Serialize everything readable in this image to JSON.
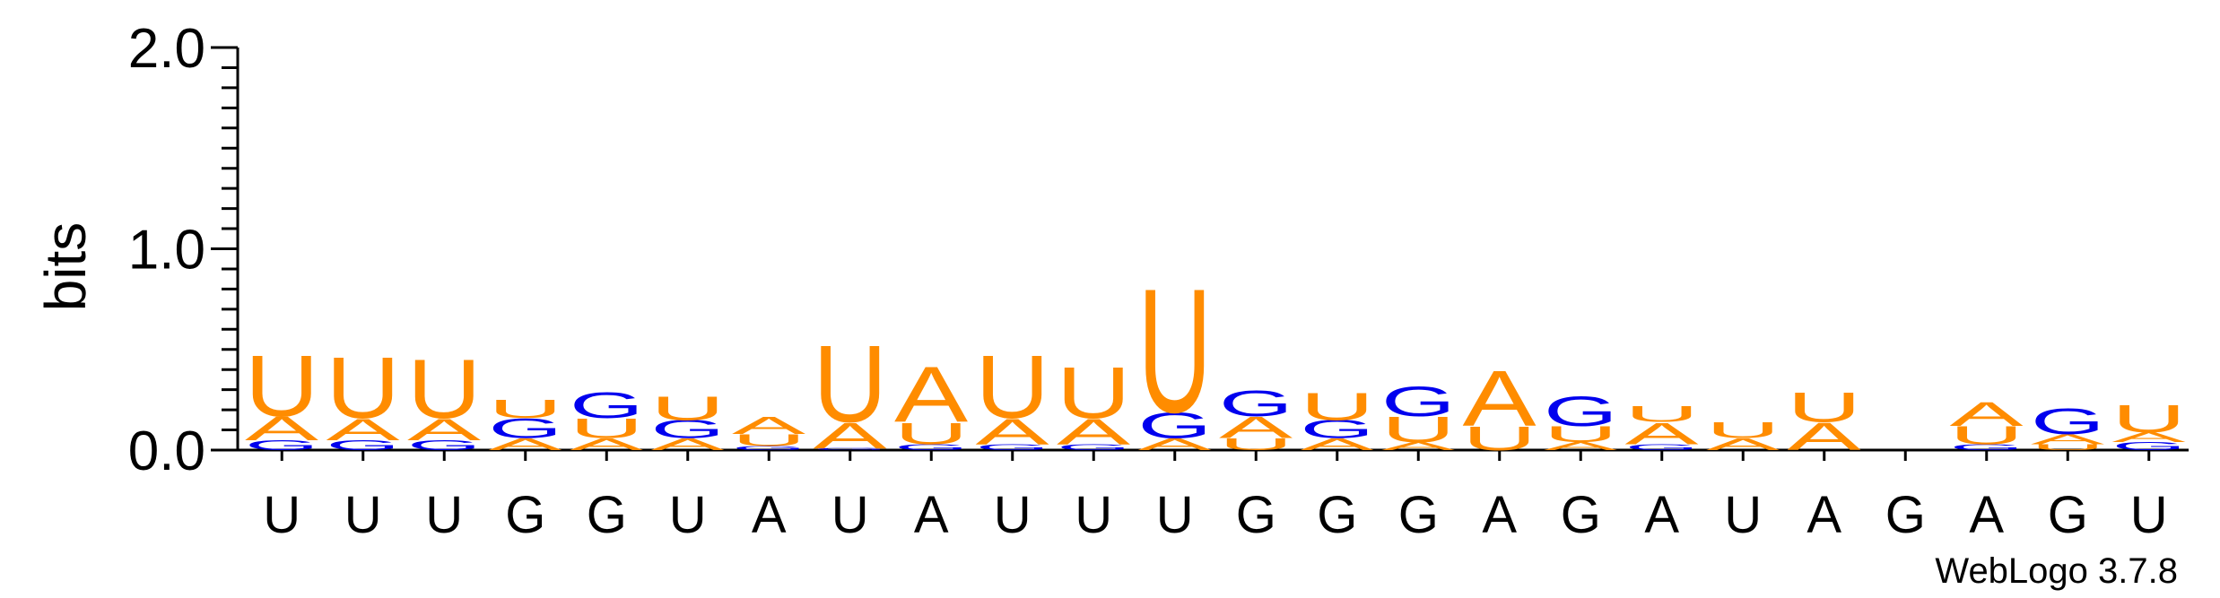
{
  "chart_data": {
    "type": "sequence-logo",
    "ylabel": "bits",
    "ylim": [
      0,
      2.0
    ],
    "yticks": [
      "0.0",
      "1.0",
      "2.0"
    ],
    "colors": {
      "A": "#ff8c00",
      "U": "#ff8c00",
      "G": "#0000ee"
    },
    "credit": "WebLogo 3.7.8",
    "positions": [
      {
        "label": "U",
        "stack": [
          [
            "G",
            0.05
          ],
          [
            "A",
            0.12
          ],
          [
            "U",
            0.31
          ]
        ]
      },
      {
        "label": "U",
        "stack": [
          [
            "G",
            0.05
          ],
          [
            "A",
            0.11
          ],
          [
            "U",
            0.31
          ]
        ]
      },
      {
        "label": "U",
        "stack": [
          [
            "G",
            0.05
          ],
          [
            "A",
            0.11
          ],
          [
            "U",
            0.3
          ]
        ]
      },
      {
        "label": "G",
        "stack": [
          [
            "A",
            0.06
          ],
          [
            "G",
            0.1
          ],
          [
            "U",
            0.09
          ]
        ]
      },
      {
        "label": "G",
        "stack": [
          [
            "A",
            0.06
          ],
          [
            "U",
            0.1
          ],
          [
            "G",
            0.13
          ]
        ]
      },
      {
        "label": "U",
        "stack": [
          [
            "A",
            0.06
          ],
          [
            "G",
            0.09
          ],
          [
            "U",
            0.12
          ]
        ]
      },
      {
        "label": "A",
        "stack": [
          [
            "G",
            0.02
          ],
          [
            "U",
            0.06
          ],
          [
            "A",
            0.09
          ]
        ]
      },
      {
        "label": "U",
        "stack": [
          [
            "G",
            0.01
          ],
          [
            "A",
            0.13
          ],
          [
            "U",
            0.39
          ]
        ]
      },
      {
        "label": "A",
        "stack": [
          [
            "G",
            0.03
          ],
          [
            "U",
            0.11
          ],
          [
            "A",
            0.28
          ]
        ]
      },
      {
        "label": "U",
        "stack": [
          [
            "G",
            0.03
          ],
          [
            "A",
            0.13
          ],
          [
            "U",
            0.32
          ]
        ]
      },
      {
        "label": "U",
        "stack": [
          [
            "G",
            0.03
          ],
          [
            "A",
            0.13
          ],
          [
            "U",
            0.26
          ]
        ]
      },
      {
        "label": "U",
        "stack": [
          [
            "A",
            0.06
          ],
          [
            "G",
            0.13
          ],
          [
            "U",
            0.63
          ]
        ]
      },
      {
        "label": "G",
        "stack": [
          [
            "U",
            0.06
          ],
          [
            "A",
            0.11
          ],
          [
            "G",
            0.13
          ]
        ]
      },
      {
        "label": "G",
        "stack": [
          [
            "A",
            0.06
          ],
          [
            "G",
            0.09
          ],
          [
            "U",
            0.14
          ]
        ]
      },
      {
        "label": "G",
        "stack": [
          [
            "A",
            0.04
          ],
          [
            "U",
            0.13
          ],
          [
            "G",
            0.15
          ]
        ]
      },
      {
        "label": "A",
        "stack": [
          [
            "U",
            0.12
          ],
          [
            "A",
            0.28
          ]
        ]
      },
      {
        "label": "G",
        "stack": [
          [
            "A",
            0.04
          ],
          [
            "U",
            0.08
          ],
          [
            "G",
            0.15
          ]
        ]
      },
      {
        "label": "A",
        "stack": [
          [
            "G",
            0.03
          ],
          [
            "A",
            0.11
          ],
          [
            "U",
            0.08
          ]
        ]
      },
      {
        "label": "U",
        "stack": [
          [
            "A",
            0.06
          ],
          [
            "U",
            0.08
          ]
        ]
      },
      {
        "label": "A",
        "stack": [
          [
            "A",
            0.14
          ],
          [
            "U",
            0.15
          ]
        ]
      },
      {
        "label": "G",
        "stack": []
      },
      {
        "label": "A",
        "stack": [
          [
            "G",
            0.03
          ],
          [
            "U",
            0.09
          ],
          [
            "A",
            0.12
          ]
        ]
      },
      {
        "label": "G",
        "stack": [
          [
            "U",
            0.03
          ],
          [
            "A",
            0.05
          ],
          [
            "G",
            0.13
          ]
        ]
      },
      {
        "label": "U",
        "stack": [
          [
            "G",
            0.04
          ],
          [
            "A",
            0.05
          ],
          [
            "U",
            0.14
          ]
        ]
      }
    ]
  }
}
